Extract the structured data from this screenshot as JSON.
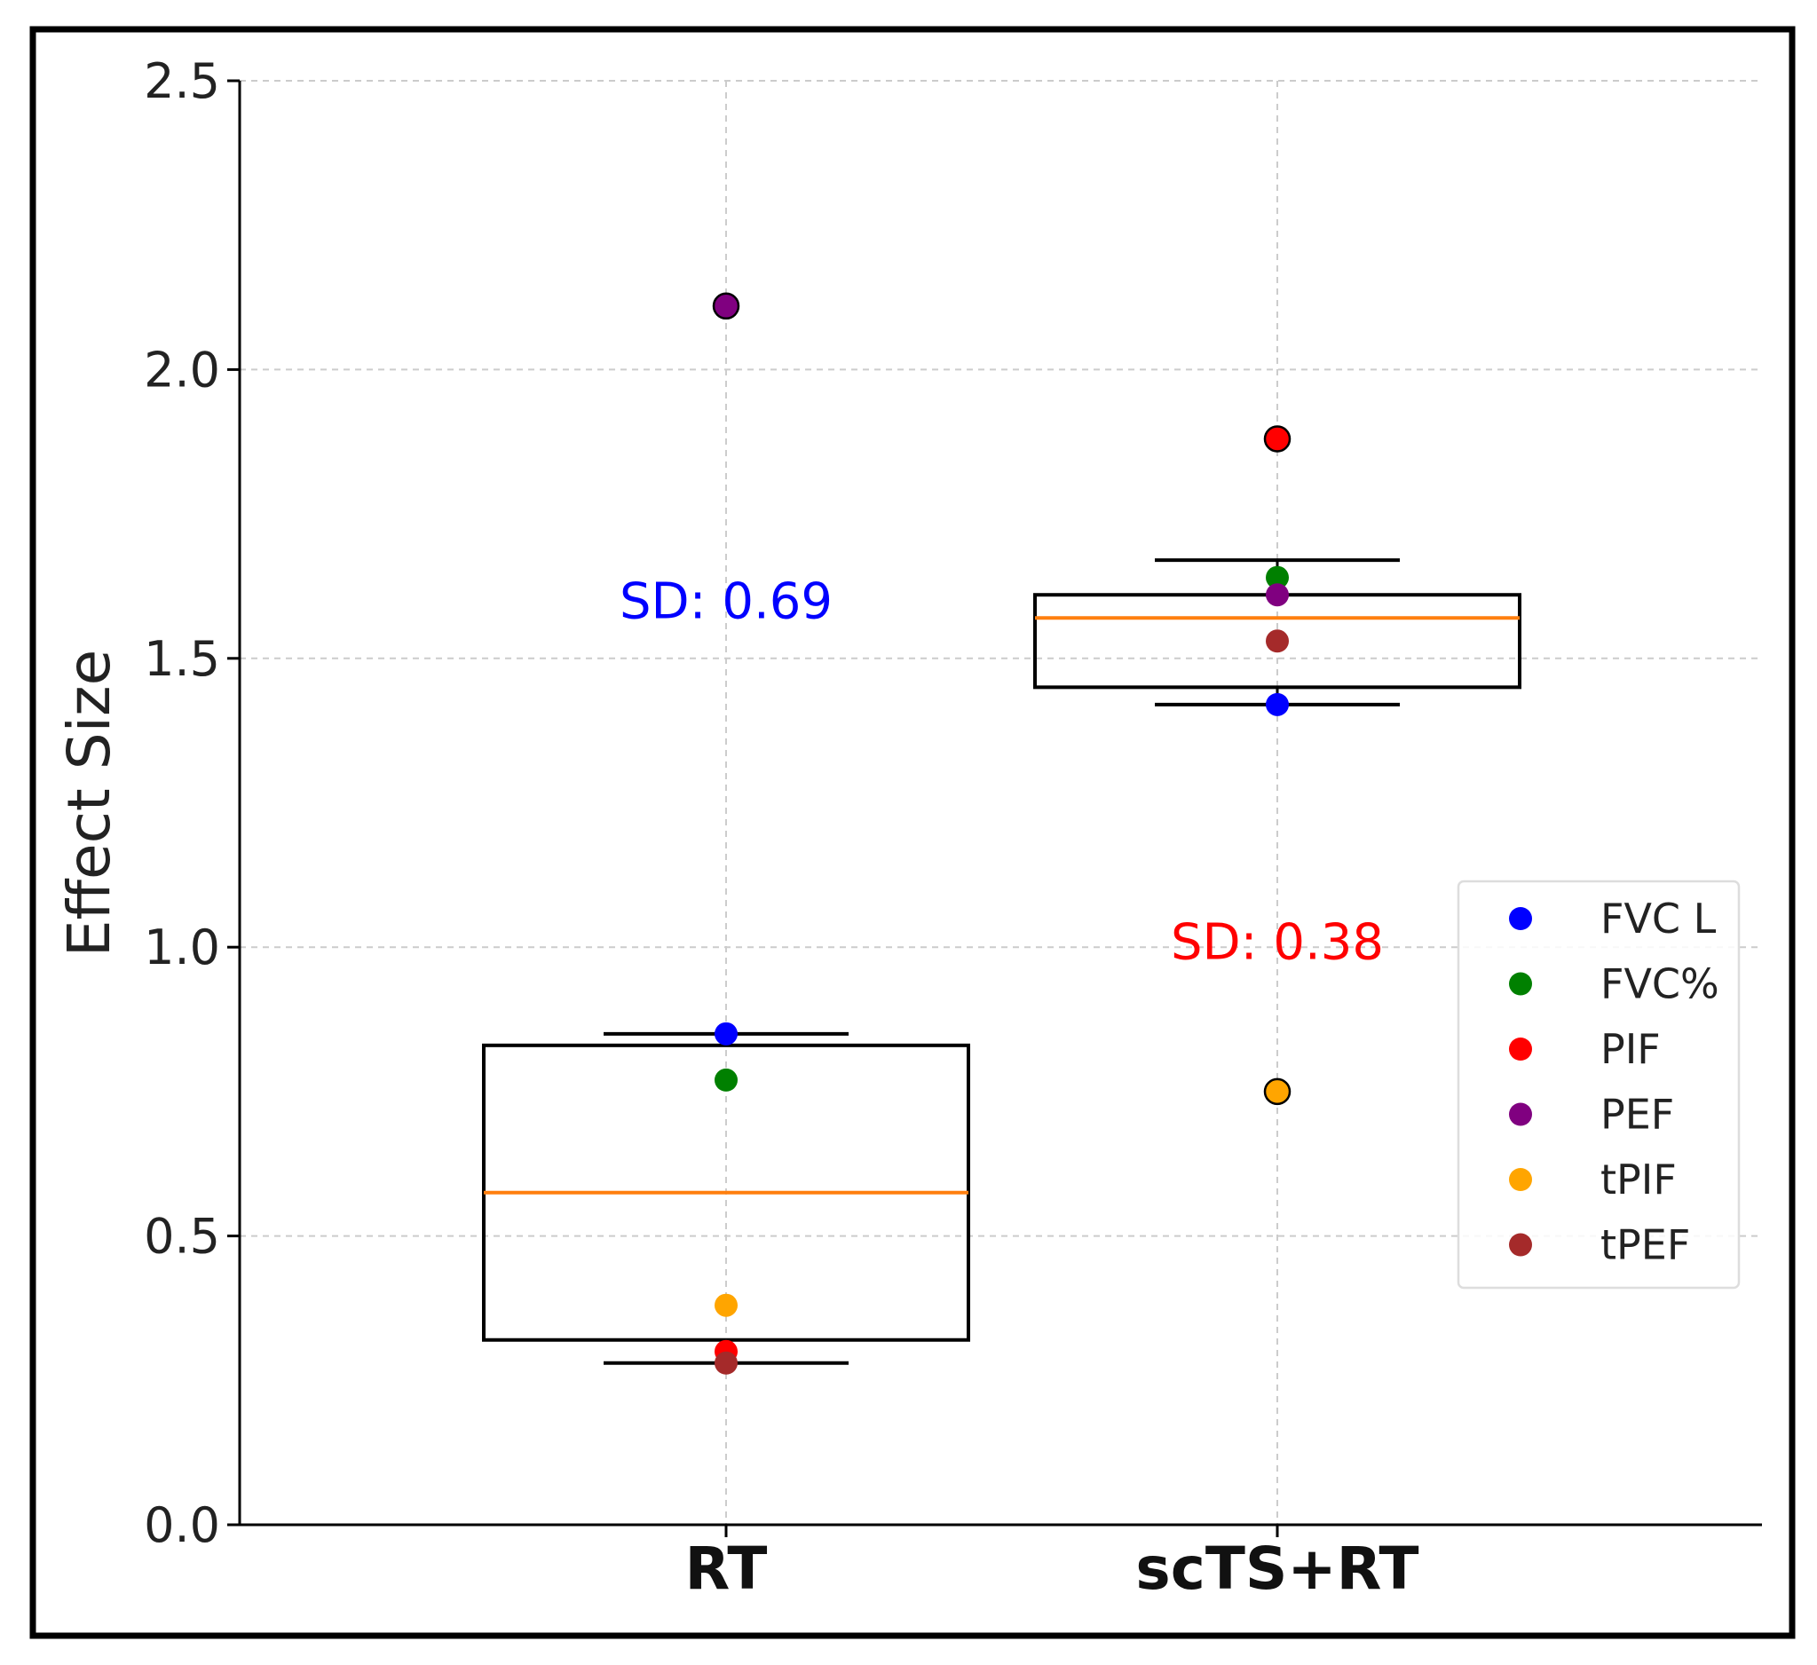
{
  "chart_data": {
    "type": "box",
    "title": "",
    "xlabel": "",
    "ylabel": "Effect Size",
    "ylim": [
      0,
      2.5
    ],
    "yticks": [
      0.0,
      0.5,
      1.0,
      1.5,
      2.0,
      2.5
    ],
    "ytick_labels": [
      "0.0",
      "0.5",
      "1.0",
      "1.5",
      "2.0",
      "2.5"
    ],
    "grid": true,
    "categories": [
      "RT",
      "scTS+RT"
    ],
    "colors": {
      "FVC L": "#0000ff",
      "FVC%": "#008000",
      "PIF": "#ff0000",
      "PEF": "#800080",
      "tPIF": "#ffa500",
      "tPEF": "#a52a2a",
      "median": "#ff7f0e"
    },
    "boxes": [
      {
        "category": "RT",
        "whisker_low": 0.28,
        "q1": 0.32,
        "median": 0.575,
        "q3": 0.83,
        "whisker_high": 0.85,
        "sd_label": "SD: 0.69",
        "sd_label_y": 1.6,
        "sd_color": "#0000ff",
        "points": [
          {
            "metric": "FVC L",
            "value": 0.85,
            "outlier": false
          },
          {
            "metric": "FVC%",
            "value": 0.77,
            "outlier": false
          },
          {
            "metric": "PIF",
            "value": 0.3,
            "outlier": false
          },
          {
            "metric": "PEF",
            "value": 2.11,
            "outlier": true
          },
          {
            "metric": "tPIF",
            "value": 0.38,
            "outlier": false
          },
          {
            "metric": "tPEF",
            "value": 0.28,
            "outlier": false
          }
        ]
      },
      {
        "category": "scTS+RT",
        "whisker_low": 1.42,
        "q1": 1.45,
        "median": 1.57,
        "q3": 1.61,
        "whisker_high": 1.67,
        "sd_label": "SD: 0.38",
        "sd_label_y": 1.01,
        "sd_color": "#ff0000",
        "points": [
          {
            "metric": "FVC L",
            "value": 1.42,
            "outlier": false
          },
          {
            "metric": "FVC%",
            "value": 1.64,
            "outlier": false
          },
          {
            "metric": "PIF",
            "value": 1.88,
            "outlier": true
          },
          {
            "metric": "PEF",
            "value": 1.61,
            "outlier": false
          },
          {
            "metric": "tPIF",
            "value": 0.75,
            "outlier": true
          },
          {
            "metric": "tPEF",
            "value": 1.53,
            "outlier": false
          }
        ]
      }
    ],
    "legend": {
      "position": "right",
      "entries": [
        "FVC L",
        "FVC%",
        "PIF",
        "PEF",
        "tPIF",
        "tPEF"
      ]
    }
  }
}
